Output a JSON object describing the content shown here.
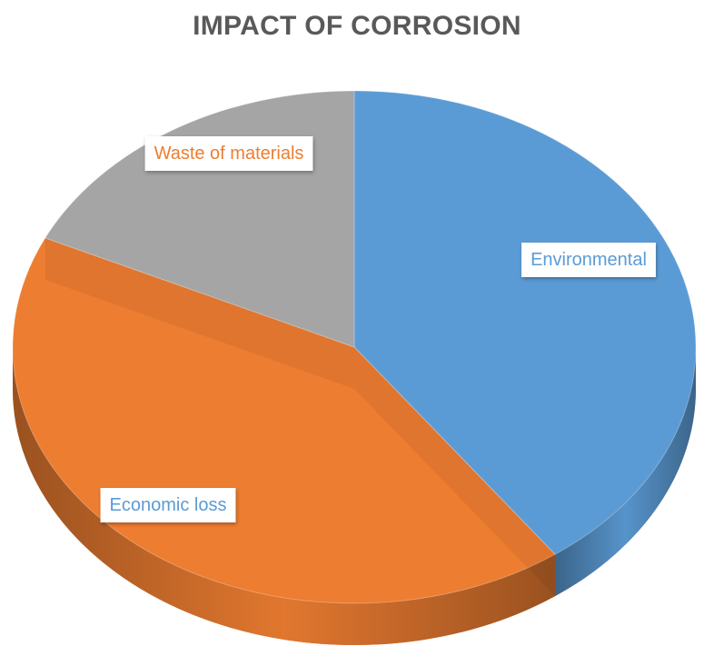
{
  "chart_data": {
    "type": "pie",
    "title": "IMPACT OF CORROSION",
    "categories": [
      "Environmental",
      "Economic loss",
      "Waste of materials"
    ],
    "values": [
      40,
      42,
      18
    ],
    "colors": [
      "#5B9BD5",
      "#ED7D31",
      "#A5A5A5"
    ],
    "label_colors": [
      "#5B9BD5",
      "#5B9BD5",
      "#ED7D31"
    ],
    "start": "top",
    "direction": "clockwise",
    "legend": "none",
    "data_labels": "category-name"
  }
}
